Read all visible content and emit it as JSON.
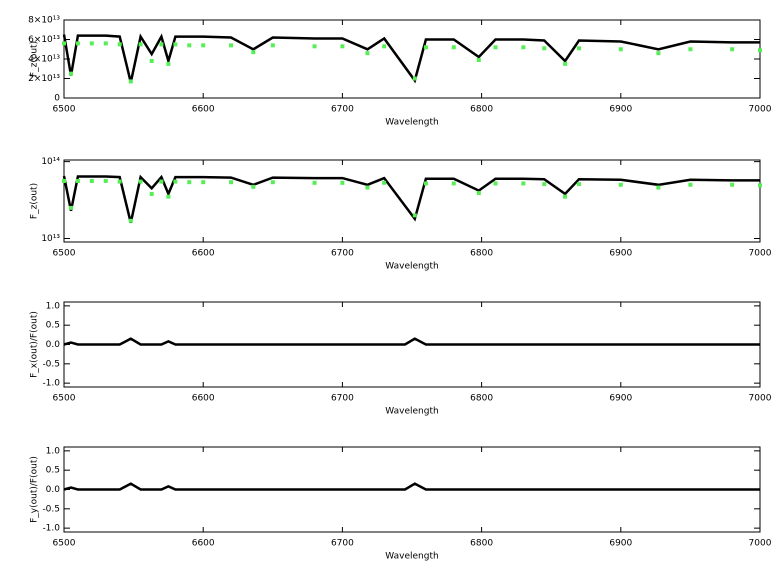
{
  "chart_data": [
    {
      "type": "line",
      "ylabel": "F_z(out)",
      "xlabel": "Wavelength",
      "x": [
        6500,
        6505,
        6510,
        6520,
        6530,
        6540,
        6548,
        6555,
        6563,
        6570,
        6575,
        6580,
        6590,
        6600,
        6620,
        6636,
        6650,
        6680,
        6700,
        6718,
        6730,
        6752,
        6760,
        6780,
        6798,
        6810,
        6830,
        6845,
        6860,
        6870,
        6900,
        6927,
        6950,
        6980,
        7000
      ],
      "series": [
        {
          "name": "F_z",
          "color": "#000000",
          "style": "line",
          "values": [
            65000000000000.0,
            23000000000000.0,
            64000000000000.0,
            64000000000000.0,
            64000000000000.0,
            63000000000000.0,
            16000000000000.0,
            63000000000000.0,
            45000000000000.0,
            63000000000000.0,
            38000000000000.0,
            63000000000000.0,
            63000000000000.0,
            63000000000000.0,
            62000000000000.0,
            50000000000000.0,
            62000000000000.0,
            61000000000000.0,
            61000000000000.0,
            50000000000000.0,
            61000000000000.0,
            18000000000000.0,
            60000000000000.0,
            60000000000000.0,
            42000000000000.0,
            60000000000000.0,
            60000000000000.0,
            59000000000000.0,
            38000000000000.0,
            59000000000000.0,
            58000000000000.0,
            50000000000000.0,
            58000000000000.0,
            57000000000000.0,
            57000000000000.0
          ]
        },
        {
          "name": "F_z model",
          "color": "#55ee55",
          "style": "marker",
          "values": [
            56000000000000.0,
            25000000000000.0,
            56000000000000.0,
            56000000000000.0,
            56000000000000.0,
            55000000000000.0,
            17000000000000.0,
            55000000000000.0,
            38000000000000.0,
            55000000000000.0,
            35000000000000.0,
            55000000000000.0,
            54000000000000.0,
            54000000000000.0,
            54000000000000.0,
            47000000000000.0,
            54000000000000.0,
            53000000000000.0,
            53000000000000.0,
            46000000000000.0,
            53000000000000.0,
            20000000000000.0,
            52000000000000.0,
            52000000000000.0,
            39000000000000.0,
            52000000000000.0,
            52000000000000.0,
            51000000000000.0,
            35000000000000.0,
            51000000000000.0,
            50000000000000.0,
            46000000000000.0,
            50000000000000.0,
            50000000000000.0,
            49000000000000.0
          ]
        }
      ],
      "xlim": [
        6500,
        7000
      ],
      "xticks": [
        6500,
        6600,
        6700,
        6800,
        6900,
        7000
      ],
      "ylim": [
        0,
        80000000000000.0
      ],
      "yticks": [
        0,
        {
          "value": 20000000000000.0,
          "label": "2×10¹³"
        },
        {
          "value": 40000000000000.0,
          "label": "4×10¹³"
        },
        {
          "value": 60000000000000.0,
          "label": "6×10¹³"
        },
        {
          "value": 80000000000000.0,
          "label": "8×10¹³"
        }
      ],
      "log": false
    },
    {
      "type": "line",
      "ylabel": "F_z(out)",
      "xlabel": "Wavelength",
      "x": [
        6500,
        6505,
        6510,
        6520,
        6530,
        6540,
        6548,
        6555,
        6563,
        6570,
        6575,
        6580,
        6590,
        6600,
        6620,
        6636,
        6650,
        6680,
        6700,
        6718,
        6730,
        6752,
        6760,
        6780,
        6798,
        6810,
        6830,
        6845,
        6860,
        6870,
        6900,
        6927,
        6950,
        6980,
        7000
      ],
      "series": [
        {
          "name": "F_z",
          "color": "#000000",
          "style": "line",
          "values": [
            65000000000000.0,
            23000000000000.0,
            64000000000000.0,
            64000000000000.0,
            64000000000000.0,
            63000000000000.0,
            16000000000000.0,
            63000000000000.0,
            45000000000000.0,
            63000000000000.0,
            38000000000000.0,
            63000000000000.0,
            63000000000000.0,
            63000000000000.0,
            62000000000000.0,
            50000000000000.0,
            62000000000000.0,
            61000000000000.0,
            61000000000000.0,
            50000000000000.0,
            61000000000000.0,
            18000000000000.0,
            60000000000000.0,
            60000000000000.0,
            42000000000000.0,
            60000000000000.0,
            60000000000000.0,
            59000000000000.0,
            38000000000000.0,
            59000000000000.0,
            58000000000000.0,
            50000000000000.0,
            58000000000000.0,
            57000000000000.0,
            57000000000000.0
          ]
        },
        {
          "name": "F_z model",
          "color": "#55ee55",
          "style": "marker",
          "values": [
            56000000000000.0,
            25000000000000.0,
            56000000000000.0,
            56000000000000.0,
            56000000000000.0,
            55000000000000.0,
            17000000000000.0,
            55000000000000.0,
            38000000000000.0,
            55000000000000.0,
            35000000000000.0,
            55000000000000.0,
            54000000000000.0,
            54000000000000.0,
            54000000000000.0,
            47000000000000.0,
            54000000000000.0,
            53000000000000.0,
            53000000000000.0,
            46000000000000.0,
            53000000000000.0,
            20000000000000.0,
            52000000000000.0,
            52000000000000.0,
            39000000000000.0,
            52000000000000.0,
            52000000000000.0,
            51000000000000.0,
            35000000000000.0,
            51000000000000.0,
            50000000000000.0,
            46000000000000.0,
            50000000000000.0,
            50000000000000.0,
            49000000000000.0
          ]
        }
      ],
      "xlim": [
        6500,
        7000
      ],
      "xticks": [
        6500,
        6600,
        6700,
        6800,
        6900,
        7000
      ],
      "ylim": [
        9000000000000.0,
        105000000000000.0
      ],
      "yticks": [
        {
          "value": 10000000000000.0,
          "label": "10¹³"
        },
        {
          "value": 100000000000000.0,
          "label": "10¹⁴"
        }
      ],
      "log": true
    },
    {
      "type": "line",
      "ylabel": "F_x(out)/F(out)",
      "xlabel": "Wavelength",
      "x": [
        6500,
        6505,
        6510,
        6540,
        6548,
        6555,
        6570,
        6575,
        6580,
        6745,
        6752,
        6760,
        7000
      ],
      "series": [
        {
          "name": "F_x ratio",
          "color": "#000000",
          "style": "line",
          "values": [
            0,
            0.05,
            0,
            0,
            0.15,
            0,
            0,
            0.08,
            0,
            0,
            0.15,
            0,
            0
          ]
        }
      ],
      "xlim": [
        6500,
        7000
      ],
      "xticks": [
        6500,
        6600,
        6700,
        6800,
        6900,
        7000
      ],
      "ylim": [
        -1.1,
        1.1
      ],
      "yticks": [
        {
          "value": -1,
          "label": "-1.0"
        },
        {
          "value": -0.5,
          "label": "-0.5"
        },
        {
          "value": 0,
          "label": "0.0"
        },
        {
          "value": 0.5,
          "label": "0.5"
        },
        {
          "value": 1,
          "label": "1.0"
        }
      ],
      "log": false
    },
    {
      "type": "line",
      "ylabel": "F_y(out)/F(out)",
      "xlabel": "Wavelength",
      "x": [
        6500,
        6505,
        6510,
        6540,
        6548,
        6555,
        6570,
        6575,
        6580,
        6745,
        6752,
        6760,
        7000
      ],
      "series": [
        {
          "name": "F_y ratio",
          "color": "#000000",
          "style": "line",
          "values": [
            0,
            0.05,
            0,
            0,
            0.15,
            0,
            0,
            0.08,
            0,
            0,
            0.15,
            0,
            0
          ]
        }
      ],
      "xlim": [
        6500,
        7000
      ],
      "xticks": [
        6500,
        6600,
        6700,
        6800,
        6900,
        7000
      ],
      "ylim": [
        -1.1,
        1.1
      ],
      "yticks": [
        {
          "value": -1,
          "label": "-1.0"
        },
        {
          "value": -0.5,
          "label": "-0.5"
        },
        {
          "value": 0,
          "label": "0.0"
        },
        {
          "value": 0.5,
          "label": "0.5"
        },
        {
          "value": 1,
          "label": "1.0"
        }
      ],
      "log": false
    }
  ]
}
